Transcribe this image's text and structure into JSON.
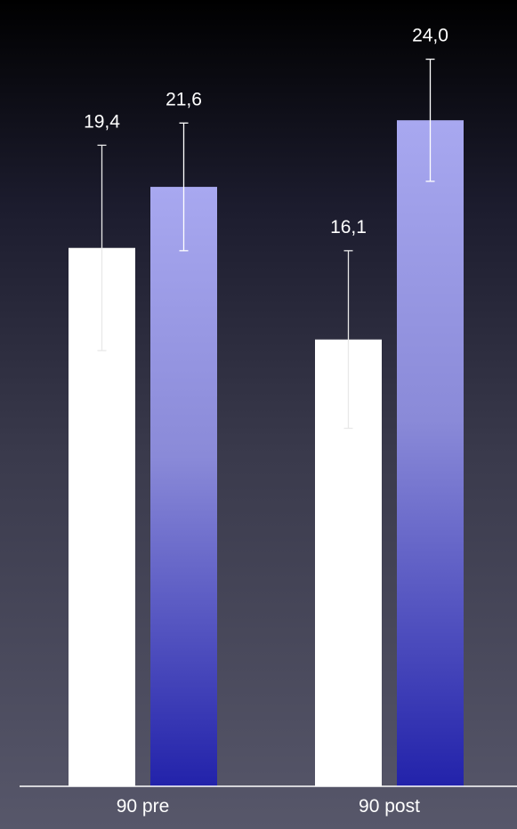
{
  "chart_data": {
    "type": "bar",
    "categories": [
      "90 pre",
      "90 post"
    ],
    "series": [
      {
        "values": [
          19.4,
          16.1
        ],
        "value_labels": [
          "19,4",
          "16,1"
        ],
        "error": [
          3.7,
          3.2
        ],
        "color": "#ffffff"
      },
      {
        "values": [
          21.6,
          24.0
        ],
        "value_labels": [
          "21,6",
          "24,0"
        ],
        "error": [
          2.3,
          2.2
        ],
        "color_top": "#a8a8f0",
        "color_bottom": "#2222aa"
      }
    ],
    "title": "",
    "xlabel": "",
    "ylabel": "",
    "ylim": [
      0,
      26
    ],
    "grid": false,
    "legend": "none"
  }
}
